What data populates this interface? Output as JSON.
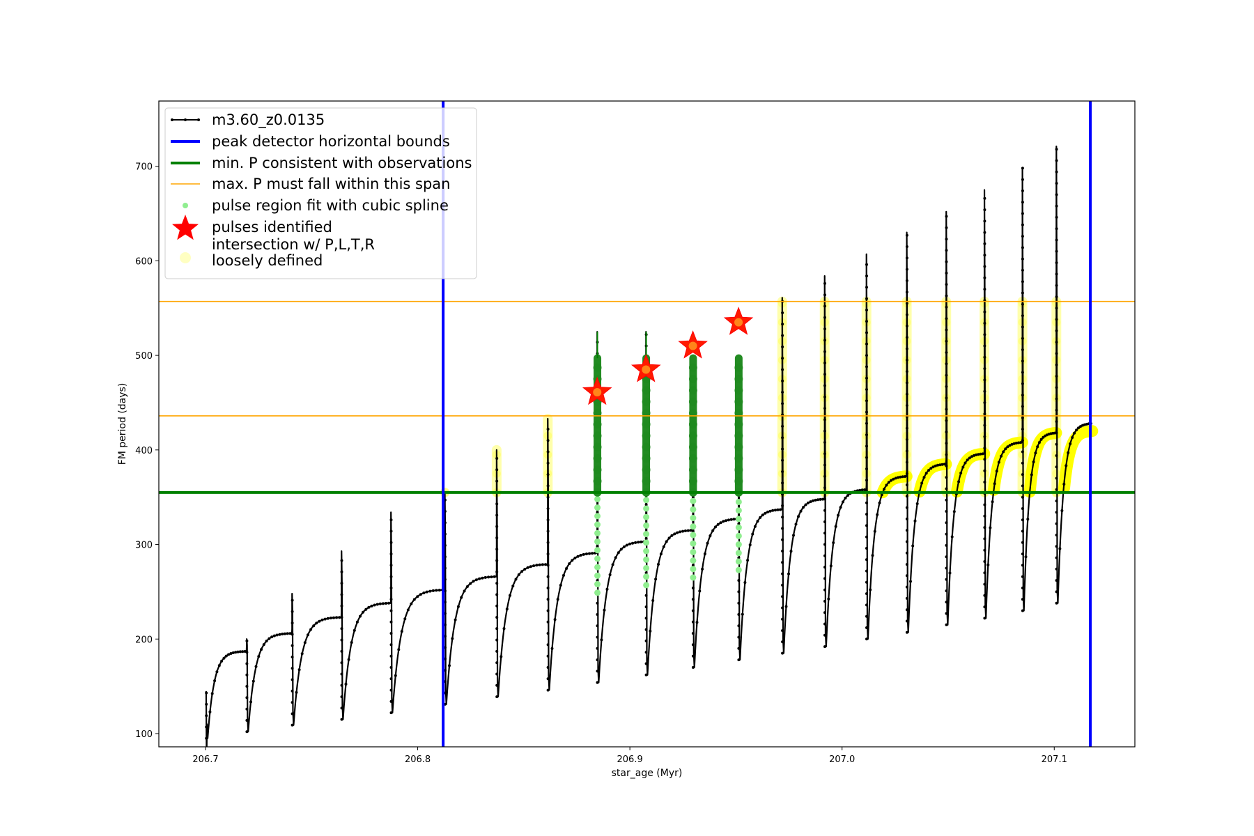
{
  "chart_data": {
    "type": "line",
    "title": "",
    "xlabel": "star_age (Myr)",
    "ylabel": "FM period (days)",
    "xlim": [
      206.678,
      207.138
    ],
    "ylim": [
      86,
      769
    ],
    "xticks": [
      206.7,
      206.8,
      206.9,
      207.0,
      207.1
    ],
    "xtick_labels": [
      "206.7",
      "206.8",
      "206.9",
      "207.0",
      "207.1"
    ],
    "yticks": [
      100,
      200,
      300,
      400,
      500,
      600,
      700
    ],
    "ytick_labels": [
      "100",
      "200",
      "300",
      "400",
      "500",
      "600",
      "700"
    ],
    "grid": false,
    "legend_position": "top-left",
    "reference_lines": {
      "vertical_bounds": [
        206.812,
        207.117
      ],
      "min_period": 355,
      "max_period_span": [
        436,
        557
      ]
    },
    "pulses": [
      {
        "x": 206.7003,
        "min": 95,
        "max": 145,
        "pre": 0,
        "post": 187
      },
      {
        "x": 206.7194,
        "min": 102,
        "max": 200,
        "pre": 187,
        "post": 206
      },
      {
        "x": 206.7408,
        "min": 109,
        "max": 248,
        "pre": 206,
        "post": 223
      },
      {
        "x": 206.7641,
        "min": 115,
        "max": 293,
        "pre": 223,
        "post": 238
      },
      {
        "x": 206.7874,
        "min": 122,
        "max": 334,
        "pre": 238,
        "post": 252
      },
      {
        "x": 206.8128,
        "min": 131,
        "max": 355,
        "pre": 252,
        "post": 266
      },
      {
        "x": 206.8372,
        "min": 139,
        "max": 400,
        "pre": 266,
        "post": 279
      },
      {
        "x": 206.8613,
        "min": 146,
        "max": 433,
        "pre": 279,
        "post": 291
      },
      {
        "x": 206.8846,
        "min": 154,
        "max": 525,
        "pre": 291,
        "post": 303
      },
      {
        "x": 206.9076,
        "min": 162,
        "max": 525,
        "pre": 303,
        "post": 315
      },
      {
        "x": 206.9297,
        "min": 170,
        "max": 500,
        "pre": 315,
        "post": 327
      },
      {
        "x": 206.9512,
        "min": 178,
        "max": 498,
        "pre": 327,
        "post": 337
      },
      {
        "x": 206.9718,
        "min": 185,
        "max": 561,
        "pre": 337,
        "post": 348
      },
      {
        "x": 206.9918,
        "min": 192,
        "max": 584,
        "pre": 348,
        "post": 358
      },
      {
        "x": 207.0115,
        "min": 200,
        "max": 607,
        "pre": 358,
        "post": 372
      },
      {
        "x": 207.0305,
        "min": 207,
        "max": 630,
        "pre": 372,
        "post": 385
      },
      {
        "x": 207.0491,
        "min": 215,
        "max": 652,
        "pre": 385,
        "post": 396
      },
      {
        "x": 207.0671,
        "min": 222,
        "max": 675,
        "pre": 396,
        "post": 408
      },
      {
        "x": 207.085,
        "min": 230,
        "max": 698,
        "pre": 408,
        "post": 418
      },
      {
        "x": 207.101,
        "min": 238,
        "max": 721,
        "pre": 418,
        "post": 428
      }
    ],
    "end_x": 207.118,
    "pulses_identified": [
      {
        "x": 206.8846,
        "y": 461
      },
      {
        "x": 206.9076,
        "y": 485
      },
      {
        "x": 206.9297,
        "y": 510
      },
      {
        "x": 206.9512,
        "y": 535
      }
    ],
    "cubic_spline_pulses": [
      206.8846,
      206.9076,
      206.9297,
      206.9512
    ],
    "loose_intersection_pulses": [
      206.8128,
      206.8372,
      206.8613,
      206.9718,
      206.9918,
      207.0115,
      207.0305,
      207.0491,
      207.0671,
      207.085,
      207.101
    ],
    "loose_intersection_arcs_from": 207.0,
    "series": [
      {
        "name": "m3.60_z0.0135",
        "color": "#000000",
        "style": "line-with-small-markers"
      },
      {
        "name": "peak detector horizontal bounds",
        "color": "#0000ff",
        "style": "thick-line"
      },
      {
        "name": "min. P consistent with observations",
        "color": "#008000",
        "style": "thick-line"
      },
      {
        "name": "max. P must fall within this span",
        "color": "#ffa500",
        "style": "thin-line"
      },
      {
        "name": "pulse region fit with cubic spline",
        "color": "#90ee90",
        "style": "dots"
      },
      {
        "name": "pulses identified",
        "color": "#ff0000",
        "style": "star"
      },
      {
        "name": "intersection w/ P,L,T,R\nloosely defined",
        "color": "#ffff00",
        "style": "faint-circles"
      }
    ]
  }
}
